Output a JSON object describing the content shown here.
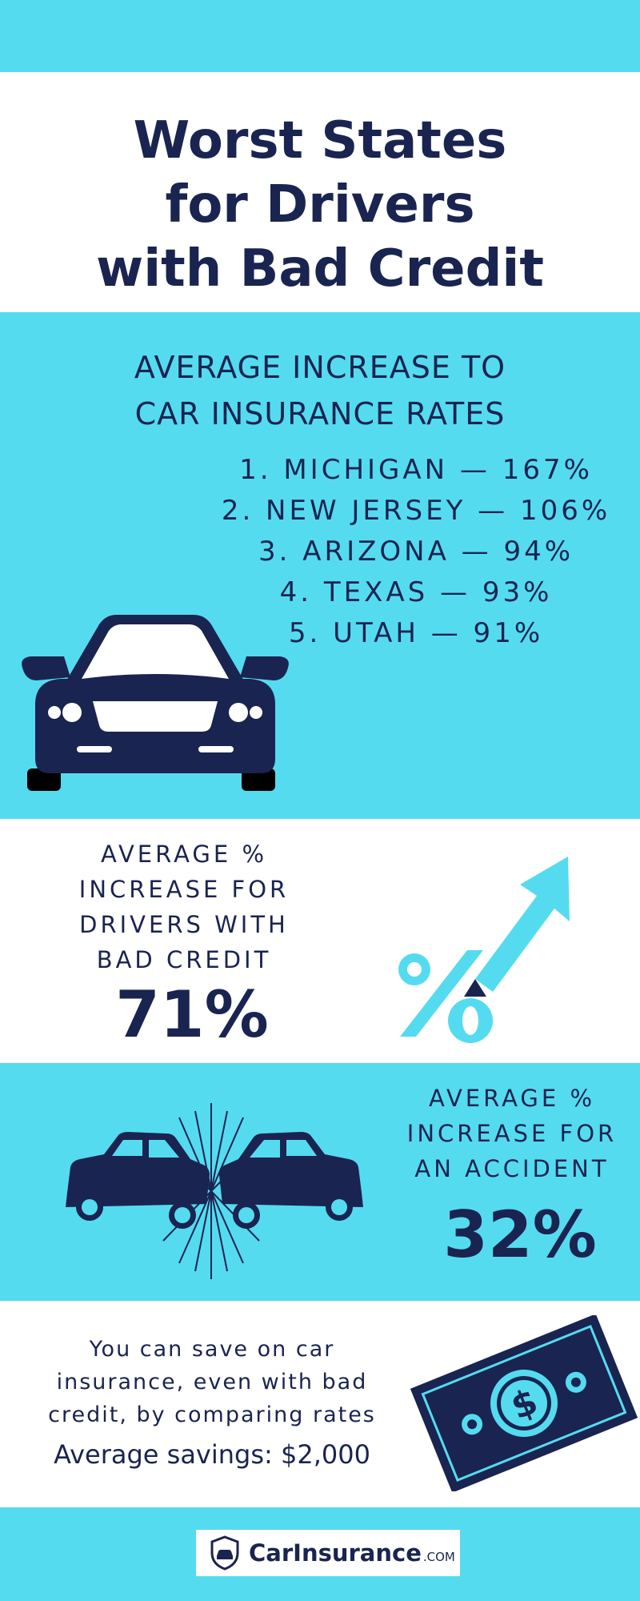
{
  "title": {
    "line1": "Worst States",
    "line2": "for Drivers",
    "line3": "with Bad Credit"
  },
  "rates": {
    "heading_line1": "AVERAGE INCREASE TO",
    "heading_line2": "CAR INSURANCE RATES",
    "states": [
      "1. MICHIGAN — 167%",
      "2. NEW JERSEY — 106%",
      "3. ARIZONA — 94%",
      "4. TEXAS — 93%",
      "5. UTAH — 91%"
    ],
    "icon": "car-front-icon"
  },
  "credit": {
    "label_line1": "AVERAGE %",
    "label_line2": "INCREASE FOR",
    "label_line3": "DRIVERS WITH",
    "label_line4": "BAD CREDIT",
    "value": "71%",
    "icon": "percent-arrow-icon"
  },
  "accident": {
    "label_line1": "AVERAGE %",
    "label_line2": "INCREASE FOR",
    "label_line3": "AN ACCIDENT",
    "value": "32%",
    "icon": "car-crash-icon"
  },
  "savings": {
    "line1": "You can save on car",
    "line2": "insurance, even with bad",
    "line3": "credit, by comparing rates",
    "average": "Average savings: $2,000",
    "icon": "dollar-bill-icon"
  },
  "footer": {
    "logo_main": "CarInsurance",
    "logo_tld": ".COM",
    "icon": "shield-car-icon"
  },
  "colors": {
    "cyan": "#55dbf0",
    "navy": "#1a2451",
    "white": "#ffffff"
  }
}
